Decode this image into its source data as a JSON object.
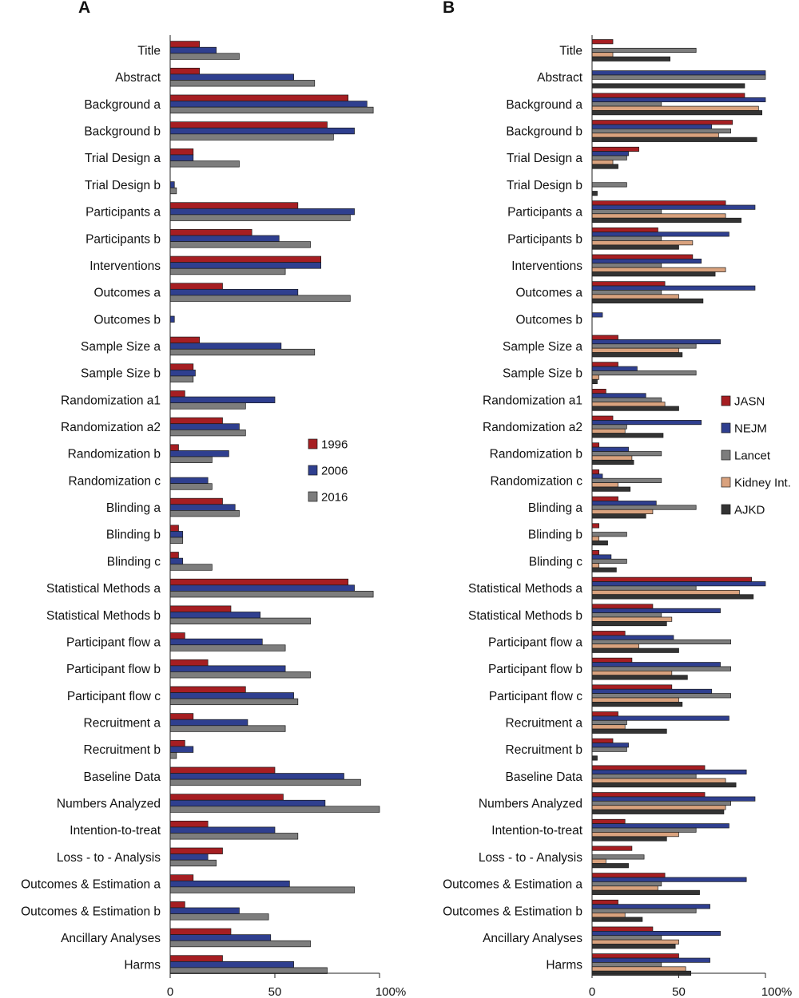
{
  "chart_data": [
    {
      "type": "bar",
      "orientation": "horizontal",
      "panel_label": "A",
      "categories": [
        "Title",
        "Abstract",
        "Background a",
        "Background b",
        "Trial Design a",
        "Trial Design b",
        "Participants a",
        "Participants b",
        "Interventions",
        "Outcomes a",
        "Outcomes b",
        "Sample Size a",
        "Sample Size b",
        "Randomization a1",
        "Randomization a2",
        "Randomization b",
        "Randomization c",
        "Blinding a",
        "Blinding b",
        "Blinding c",
        "Statistical Methods a",
        "Statistical Methods b",
        "Participant flow a",
        "Participant flow b",
        "Participant flow c",
        "Recruitment a",
        "Recruitment b",
        "Baseline Data",
        "Numbers Analyzed",
        "Intention-to-treat",
        "Loss - to - Analysis",
        "Outcomes & Estimation a",
        "Outcomes & Estimation b",
        "Ancillary Analyses",
        "Harms"
      ],
      "series": [
        {
          "name": "1996",
          "color": "#a61e22",
          "values": [
            14,
            14,
            85,
            75,
            11,
            0,
            61,
            39,
            72,
            25,
            0,
            14,
            11,
            7,
            25,
            4,
            0,
            25,
            4,
            4,
            85,
            29,
            7,
            18,
            36,
            11,
            7,
            50,
            54,
            18,
            25,
            11,
            7,
            29,
            25
          ]
        },
        {
          "name": "2006",
          "color": "#2f3f8f",
          "values": [
            22,
            59,
            94,
            88,
            11,
            2,
            88,
            52,
            72,
            61,
            2,
            53,
            12,
            50,
            33,
            28,
            18,
            31,
            6,
            6,
            88,
            43,
            44,
            55,
            59,
            37,
            11,
            83,
            74,
            50,
            18,
            57,
            33,
            48,
            59
          ]
        },
        {
          "name": "2016",
          "color": "#7d7d7d",
          "values": [
            33,
            69,
            97,
            78,
            33,
            3,
            86,
            67,
            55,
            86,
            0,
            69,
            11,
            36,
            36,
            20,
            20,
            33,
            6,
            20,
            97,
            67,
            55,
            67,
            61,
            55,
            3,
            91,
            100,
            61,
            22,
            88,
            47,
            67,
            75
          ]
        }
      ],
      "x_ticks": [
        "0",
        "50",
        "100%"
      ],
      "xlim": [
        0,
        100
      ],
      "legend_position": "right-middle"
    },
    {
      "type": "bar",
      "orientation": "horizontal",
      "panel_label": "B",
      "categories": [
        "Title",
        "Abstract",
        "Background a",
        "Background b",
        "Trial Design a",
        "Trial Design b",
        "Participants a",
        "Participants b",
        "Interventions",
        "Outcomes a",
        "Outcomes b",
        "Sample Size a",
        "Sample Size b",
        "Randomization a1",
        "Randomization a2",
        "Randomization b",
        "Randomization c",
        "Blinding a",
        "Blinding b",
        "Blinding c",
        "Statistical Methods a",
        "Statistical Methods b",
        "Participant flow a",
        "Participant flow b",
        "Participant flow c",
        "Recruitment a",
        "Recruitment b",
        "Baseline Data",
        "Numbers Analyzed",
        "Intention-to-treat",
        "Loss - to - Analysis",
        "Outcomes & Estimation a",
        "Outcomes & Estimation b",
        "Ancillary Analyses",
        "Harms"
      ],
      "series": [
        {
          "name": "JASN",
          "color": "#a61e22",
          "values": [
            12,
            0,
            88,
            81,
            27,
            0,
            77,
            38,
            58,
            42,
            0,
            15,
            15,
            8,
            12,
            4,
            4,
            15,
            4,
            4,
            92,
            35,
            19,
            23,
            46,
            15,
            12,
            65,
            65,
            19,
            23,
            42,
            15,
            35,
            50
          ]
        },
        {
          "name": "NEJM",
          "color": "#2f3f8f",
          "values": [
            0,
            100,
            100,
            69,
            21,
            0,
            94,
            79,
            63,
            94,
            6,
            74,
            26,
            31,
            63,
            21,
            6,
            37,
            0,
            11,
            100,
            74,
            47,
            74,
            69,
            79,
            21,
            89,
            94,
            79,
            0,
            89,
            68,
            74,
            68
          ]
        },
        {
          "name": "Lancet",
          "color": "#7d7d7d",
          "values": [
            60,
            100,
            40,
            80,
            20,
            20,
            40,
            40,
            40,
            40,
            0,
            60,
            60,
            40,
            20,
            40,
            40,
            60,
            20,
            20,
            60,
            40,
            80,
            80,
            80,
            20,
            20,
            60,
            80,
            60,
            30,
            40,
            60,
            40,
            40
          ]
        },
        {
          "name": "Kidney Int.",
          "color": "#d9a27e",
          "values": [
            12,
            0,
            96,
            73,
            12,
            0,
            77,
            58,
            77,
            50,
            0,
            50,
            4,
            42,
            19,
            23,
            15,
            35,
            4,
            4,
            85,
            46,
            27,
            46,
            50,
            19,
            0,
            77,
            77,
            50,
            8,
            38,
            19,
            50,
            54
          ]
        },
        {
          "name": "AJKD",
          "color": "#333333",
          "values": [
            45,
            88,
            98,
            95,
            15,
            3,
            86,
            50,
            71,
            64,
            0,
            52,
            3,
            50,
            41,
            24,
            22,
            31,
            9,
            14,
            93,
            43,
            50,
            55,
            52,
            43,
            3,
            83,
            76,
            43,
            21,
            62,
            29,
            48,
            57
          ]
        }
      ],
      "x_ticks": [
        "0",
        "50",
        "100%"
      ],
      "xlim": [
        0,
        100
      ],
      "legend_position": "right-middle"
    }
  ]
}
